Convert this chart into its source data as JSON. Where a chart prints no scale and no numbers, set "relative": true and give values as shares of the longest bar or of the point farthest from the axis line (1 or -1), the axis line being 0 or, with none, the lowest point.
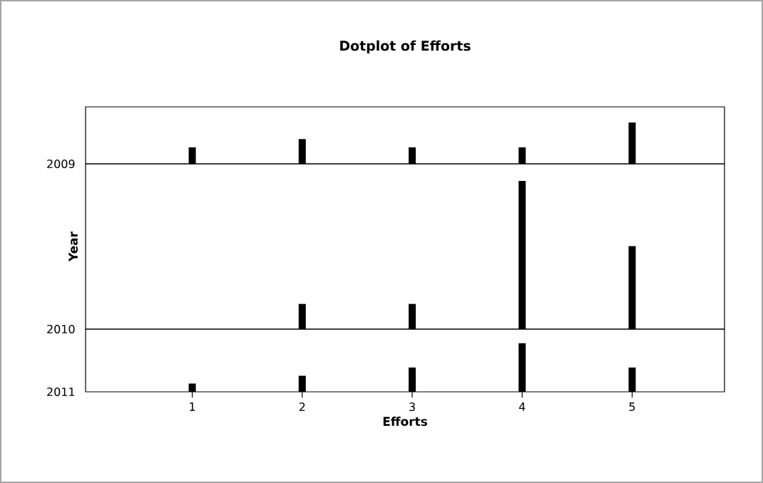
{
  "chart_data": [
    {
      "type": "bar",
      "title": "Dotplot of Efforts",
      "relative": true,
      "annotations": [
        "2009"
      ],
      "categories": [
        null,
        null,
        null,
        null,
        null
      ],
      "values": [
        0.4,
        0.6,
        0.4,
        0.4,
        1
      ],
      "color": "#000000",
      "tick_labels": false
    },
    {
      "type": "bar",
      "ylabel": "Year",
      "relative": true,
      "annotations": [
        "2010"
      ],
      "categories": [
        null,
        null,
        null,
        null,
        null
      ],
      "values": [
        0,
        0.17,
        0.17,
        1,
        0.56
      ],
      "color": "#000000",
      "tick_labels": false
    },
    {
      "type": "bar",
      "xlabel": "Efforts",
      "relative": true,
      "annotations": [
        "2011"
      ],
      "categories": [
        "1",
        "2",
        "3",
        "4",
        "5"
      ],
      "values": [
        0.17,
        0.33,
        0.5,
        1,
        0.5
      ],
      "color": "#000000",
      "tick_labels": "x"
    }
  ]
}
